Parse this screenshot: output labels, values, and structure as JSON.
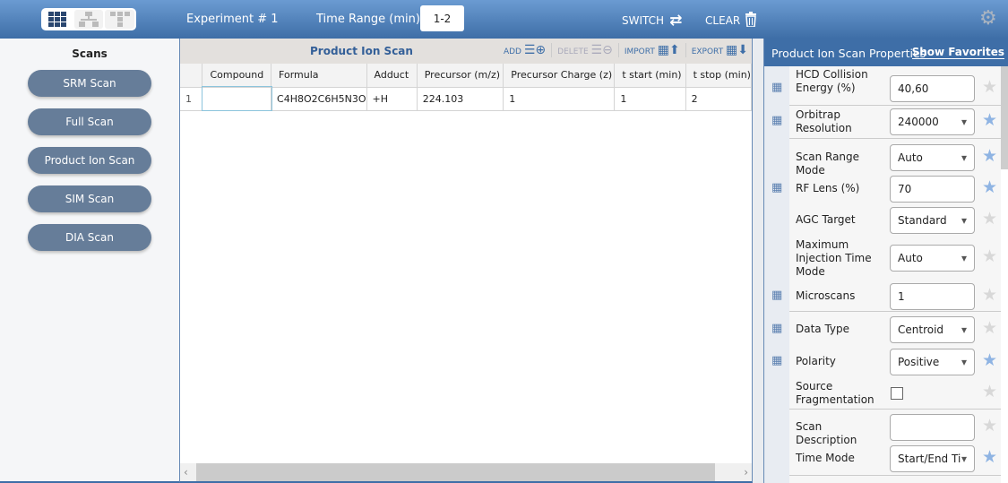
{
  "header": {
    "experiment": "Experiment # 1",
    "time_range_label": "Time Range (min)",
    "time_range_value": "1-2",
    "switch_label": "SWITCH",
    "clear_label": "CLEAR",
    "view_modes": [
      "grid-view-icon",
      "tree-view-icon",
      "layout-view-icon"
    ]
  },
  "sidebar": {
    "title": "Scans",
    "items": [
      "SRM Scan",
      "Full Scan",
      "Product Ion Scan",
      "SIM Scan",
      "DIA Scan"
    ]
  },
  "table": {
    "title": "Product Ion Scan",
    "tools": {
      "add": "ADD",
      "delete": "DELETE",
      "import": "IMPORT",
      "export": "EXPORT"
    },
    "columns": [
      "Compound",
      "Formula",
      "Adduct",
      "Precursor (m/z)",
      "Precursor Charge (z)",
      "t start (min)",
      "t stop (min)"
    ],
    "rows": [
      {
        "num": "1",
        "cells": [
          "",
          "C4H8O2C6H5N3O",
          "+H",
          "224.103",
          "1",
          "1",
          "2"
        ]
      }
    ]
  },
  "properties": {
    "title": "Product Ion Scan Properties",
    "show_favorites": "Show Favorites",
    "items": [
      {
        "label": "HCD Collision Energy (%)",
        "value": "40,60",
        "type": "text",
        "icon": true,
        "fav": false
      },
      {
        "label": "Orbitrap Resolution",
        "value": "240000",
        "type": "select",
        "icon": true,
        "fav": true
      },
      {
        "label": "Scan Range Mode",
        "value": "Auto",
        "type": "select",
        "icon": false,
        "fav": true
      },
      {
        "label": "RF Lens (%)",
        "value": "70",
        "type": "text",
        "icon": true,
        "fav": true
      },
      {
        "label": "AGC Target",
        "value": "Standard",
        "type": "select",
        "icon": false,
        "fav": false
      },
      {
        "label": "Maximum Injection Time Mode",
        "value": "Auto",
        "type": "select",
        "icon": false,
        "fav": false
      },
      {
        "label": "Microscans",
        "value": "1",
        "type": "text",
        "icon": true,
        "fav": false
      },
      {
        "label": "Data Type",
        "value": "Centroid",
        "type": "select",
        "icon": true,
        "fav": false
      },
      {
        "label": "Polarity",
        "value": "Positive",
        "type": "select",
        "icon": true,
        "fav": true
      },
      {
        "label": "Source Fragmentation",
        "value": "",
        "type": "checkbox",
        "checked": false,
        "icon": false,
        "fav": false
      },
      {
        "label": "Scan Description",
        "value": "",
        "type": "text",
        "icon": false,
        "fav": false
      },
      {
        "label": "Time Mode",
        "value": "Start/End Ti",
        "type": "select",
        "icon": false,
        "fav": true
      }
    ]
  },
  "colors": {
    "header": "#3e6ea7",
    "fav_on": "#8fb4e3",
    "fav_off": "#d8d8d8",
    "button": "#667d99"
  }
}
